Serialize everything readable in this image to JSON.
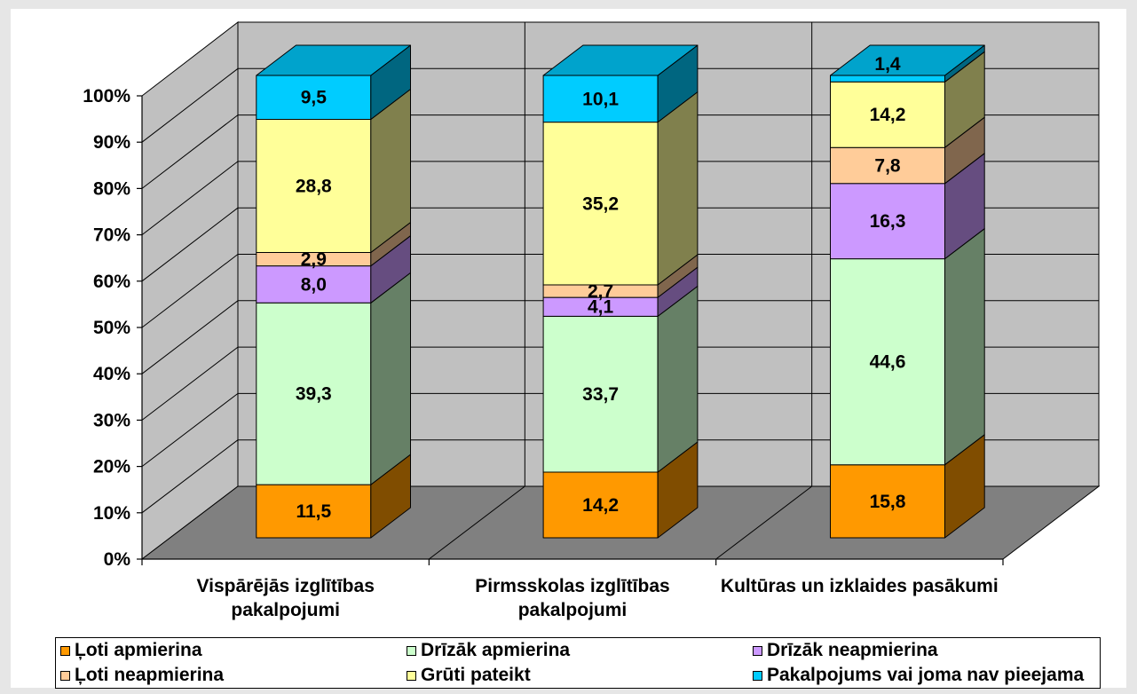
{
  "chart_data": {
    "type": "bar",
    "stacked": "percent",
    "three_d": true,
    "categories": [
      "Vispārējās izglītības pakalpojumi",
      "Pirmsskolas izglītības pakalpojumi",
      "Kultūras un izklaides pasākumi"
    ],
    "series": [
      {
        "name": "Ļoti apmierina",
        "values": [
          11.5,
          14.2,
          15.8
        ],
        "labels": [
          "11,5",
          "14,2",
          "15,8"
        ],
        "color": "#ff9900"
      },
      {
        "name": "Drīzāk apmierina",
        "values": [
          39.3,
          33.7,
          44.6
        ],
        "labels": [
          "39,3",
          "33,7",
          "44,6"
        ],
        "color": "#ccffcc"
      },
      {
        "name": "Drīzāk neapmierina",
        "values": [
          8.0,
          4.1,
          16.3
        ],
        "labels": [
          "8,0",
          "4,1",
          "16,3"
        ],
        "color": "#cc99ff"
      },
      {
        "name": "Ļoti neapmierina",
        "values": [
          2.9,
          2.7,
          7.8
        ],
        "labels": [
          "2,9",
          "2,7",
          "7,8"
        ],
        "color": "#ffcc99"
      },
      {
        "name": "Grūti pateikt",
        "values": [
          28.8,
          35.2,
          14.2
        ],
        "labels": [
          "28,8",
          "35,2",
          "14,2"
        ],
        "color": "#ffff99"
      },
      {
        "name": "Pakalpojums vai joma nav pieejama",
        "values": [
          9.5,
          10.1,
          1.4
        ],
        "labels": [
          "9,5",
          "10,1",
          "1,4"
        ],
        "color": "#00ccff"
      }
    ],
    "ylim": [
      0,
      100
    ],
    "y_ticks": [
      "0%",
      "10%",
      "20%",
      "30%",
      "40%",
      "50%",
      "60%",
      "70%",
      "80%",
      "90%",
      "100%"
    ],
    "grid": true,
    "legend": "bottom",
    "wall_color": "#c0c0c0",
    "floor_color": "#808080"
  }
}
